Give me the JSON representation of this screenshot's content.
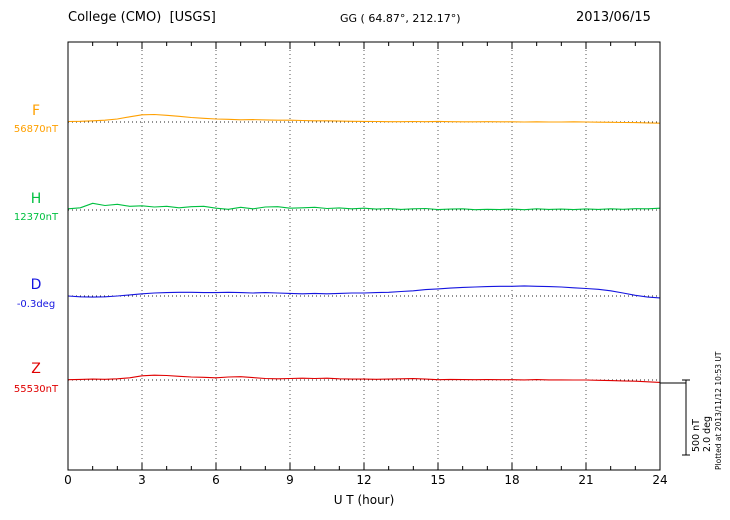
{
  "header": {
    "title": "College (CMO)  [USGS]",
    "coords": "GG ( 64.87°, 212.17°)",
    "date": "2013/06/15"
  },
  "channels": [
    {
      "label": "F",
      "value": "56870nT",
      "color": "#FFA000"
    },
    {
      "label": "H",
      "value": "12370nT",
      "color": "#00C040"
    },
    {
      "label": "D",
      "value": "-0.3deg",
      "color": "#1515E0"
    },
    {
      "label": "Z",
      "value": "55530nT",
      "color": "#E00000"
    }
  ],
  "axis": {
    "xlabel": "U T (hour)",
    "ticks": [
      0,
      3,
      6,
      9,
      12,
      15,
      18,
      21,
      24
    ]
  },
  "scale": {
    "nt_label": "500 nT",
    "deg_label": "2.0 deg"
  },
  "footer": {
    "plotted_note": "Plotted at 2013/11/12 10:53 UT"
  },
  "colors": {
    "grid": "#555555",
    "baseline": "#222222",
    "frame": "#000000"
  },
  "chart_data": {
    "type": "line",
    "title": "College (CMO) [USGS] magnetogram 2013/06/15",
    "xlabel": "U T (hour)",
    "x_start": 0,
    "x_end": 24,
    "x_step": 0.5,
    "x_ticks": [
      0,
      3,
      6,
      9,
      12,
      15,
      18,
      21,
      24
    ],
    "legend_position": "left",
    "grid": "vertical-dotted",
    "series": [
      {
        "name": "F",
        "unit": "nT",
        "baseline": 56870,
        "color": "#FFA000",
        "offsets": [
          3,
          5,
          8,
          12,
          20,
          35,
          48,
          50,
          45,
          38,
          30,
          25,
          20,
          18,
          15,
          16,
          14,
          12,
          12,
          10,
          8,
          8,
          6,
          5,
          4,
          3,
          2,
          2,
          3,
          2,
          4,
          2,
          1,
          1,
          2,
          1,
          1,
          0,
          1,
          0,
          0,
          1,
          0,
          -1,
          -2,
          -3,
          -4,
          -6,
          -8
        ]
      },
      {
        "name": "H",
        "unit": "nT",
        "baseline": 12370,
        "color": "#00C040",
        "offsets": [
          8,
          15,
          45,
          30,
          38,
          25,
          28,
          20,
          25,
          15,
          22,
          25,
          12,
          5,
          18,
          8,
          20,
          22,
          12,
          15,
          18,
          10,
          14,
          8,
          12,
          6,
          10,
          4,
          8,
          10,
          3,
          6,
          8,
          2,
          5,
          3,
          6,
          2,
          8,
          4,
          6,
          3,
          7,
          4,
          8,
          5,
          9,
          8,
          12
        ]
      },
      {
        "name": "D",
        "unit": "deg",
        "baseline": -0.3,
        "color": "#1515E0",
        "offsets": [
          0,
          -0.02,
          -0.03,
          -0.02,
          0,
          0.03,
          0.06,
          0.08,
          0.09,
          0.1,
          0.1,
          0.09,
          0.09,
          0.1,
          0.09,
          0.08,
          0.09,
          0.08,
          0.07,
          0.06,
          0.07,
          0.06,
          0.07,
          0.08,
          0.08,
          0.09,
          0.1,
          0.12,
          0.14,
          0.17,
          0.19,
          0.21,
          0.23,
          0.24,
          0.25,
          0.26,
          0.26,
          0.27,
          0.26,
          0.25,
          0.24,
          0.22,
          0.2,
          0.18,
          0.14,
          0.08,
          0.02,
          -0.03,
          -0.05
        ]
      },
      {
        "name": "Z",
        "unit": "nT",
        "baseline": 55530,
        "color": "#E00000",
        "offsets": [
          2,
          4,
          6,
          5,
          8,
          15,
          28,
          32,
          30,
          25,
          20,
          18,
          15,
          20,
          22,
          16,
          10,
          8,
          10,
          12,
          10,
          12,
          8,
          6,
          6,
          5,
          6,
          8,
          9,
          6,
          2,
          4,
          3,
          2,
          3,
          2,
          2,
          1,
          3,
          1,
          1,
          0,
          0,
          -2,
          -4,
          -6,
          -8,
          -12,
          -16
        ]
      }
    ],
    "scale_bars": [
      {
        "label": "500 nT",
        "unit": "nT",
        "value": 500
      },
      {
        "label": "2.0 deg",
        "unit": "deg",
        "value": 2.0
      }
    ]
  }
}
